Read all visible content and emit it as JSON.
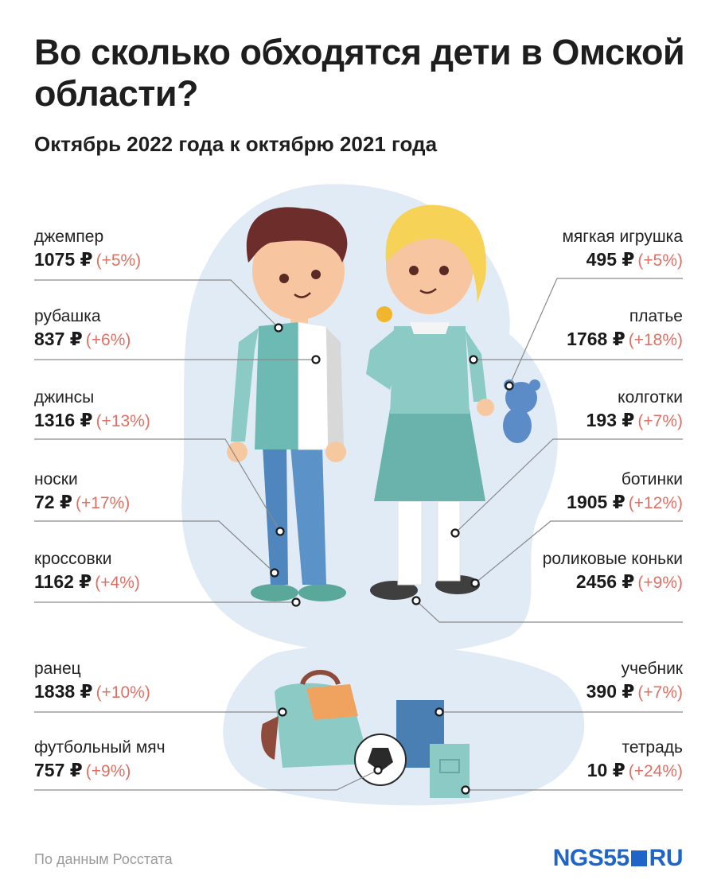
{
  "header": {
    "title": "Во сколько обходятся дети в Омской области?",
    "subtitle": "Октябрь 2022 года к октябрю 2021 года"
  },
  "items_left": [
    {
      "name": "джемпер",
      "price": "1075 ₽",
      "change": "(+5%)"
    },
    {
      "name": "рубашка",
      "price": "837 ₽",
      "change": "(+6%)"
    },
    {
      "name": "джинсы",
      "price": "1316 ₽",
      "change": "(+13%)"
    },
    {
      "name": "носки",
      "price": "72 ₽",
      "change": "(+17%)"
    },
    {
      "name": "кроссовки",
      "price": "1162 ₽",
      "change": "(+4%)"
    },
    {
      "name": "ранец",
      "price": "1838 ₽",
      "change": "(+10%)"
    },
    {
      "name": "футбольный мяч",
      "price": "757 ₽",
      "change": "(+9%)"
    }
  ],
  "items_right": [
    {
      "name": "мягкая игрушка",
      "price": "495 ₽",
      "change": "(+5%)"
    },
    {
      "name": "платье",
      "price": "1768 ₽",
      "change": "(+18%)"
    },
    {
      "name": "колготки",
      "price": "193 ₽",
      "change": "(+7%)"
    },
    {
      "name": "ботинки",
      "price": "1905 ₽",
      "change": "(+12%)"
    },
    {
      "name": "роликовые коньки",
      "price": "2456 ₽",
      "change": "(+9%)"
    },
    {
      "name": "учебник",
      "price": "390 ₽",
      "change": "(+7%)"
    },
    {
      "name": "тетрадь",
      "price": "10 ₽",
      "change": "(+24%)"
    }
  ],
  "footer": {
    "source": "По данным Росстата",
    "logo_left": "NGS55",
    "logo_right": "RU"
  },
  "colors": {
    "accent_change": "#e07064",
    "blob": "#e1ebf6",
    "teal": "#68b5b0",
    "logo_blue": "#1f64c8"
  }
}
